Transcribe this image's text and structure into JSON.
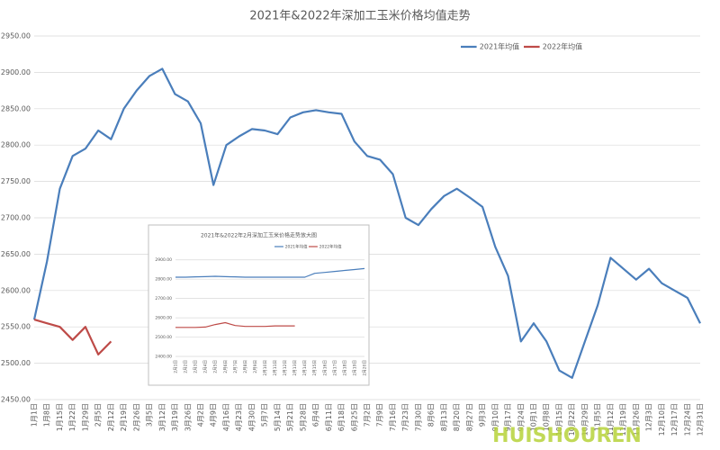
{
  "chart_data": [
    {
      "type": "line",
      "title": "2021年&2022年深加工玉米价格均值走势",
      "categories": [
        "1月1日",
        "1月8日",
        "1月15日",
        "1月22日",
        "1月29日",
        "2月5日",
        "2月12日",
        "2月19日",
        "2月26日",
        "3月5日",
        "3月12日",
        "3月19日",
        "3月26日",
        "4月2日",
        "4月9日",
        "4月16日",
        "4月23日",
        "4月30日",
        "5月7日",
        "5月14日",
        "5月21日",
        "5月28日",
        "6月4日",
        "6月11日",
        "6月18日",
        "6月25日",
        "7月2日",
        "7月9日",
        "7月16日",
        "7月23日",
        "7月30日",
        "8月6日",
        "8月13日",
        "8月20日",
        "8月27日",
        "9月3日",
        "9月10日",
        "9月17日",
        "9月24日",
        "10月1日",
        "10月8日",
        "10月15日",
        "10月22日",
        "10月29日",
        "11月5日",
        "11月12日",
        "11月19日",
        "11月26日",
        "12月3日",
        "12月10日",
        "12月17日",
        "12月24日",
        "12月31日"
      ],
      "series": [
        {
          "name": "2021年均值",
          "color": "#4a7ebb",
          "values": [
            2560,
            2640,
            2740,
            2785,
            2795,
            2820,
            2808,
            2850,
            2875,
            2895,
            2905,
            2870,
            2860,
            2830,
            2745,
            2800,
            2812,
            2822,
            2820,
            2815,
            2838,
            2845,
            2848,
            2845,
            2843,
            2805,
            2785,
            2780,
            2760,
            2700,
            2690,
            2712,
            2730,
            2740,
            2728,
            2715,
            2660,
            2620,
            2530,
            2555,
            2530,
            2490,
            2480,
            2530,
            2580,
            2645,
            2630,
            2615,
            2630,
            2610,
            2600,
            2590,
            2555
          ]
        },
        {
          "name": "2022年均值",
          "color": "#be4b48",
          "values": [
            2560,
            2555,
            2550,
            2532,
            2550,
            2512,
            2530,
            null,
            null,
            null,
            null,
            null,
            null,
            null,
            null,
            null,
            null,
            null,
            null,
            null,
            null,
            null,
            null,
            null,
            null,
            null,
            null,
            null,
            null,
            null,
            null,
            null,
            null,
            null,
            null,
            null,
            null,
            null,
            null,
            null,
            null,
            null,
            null,
            null,
            null,
            null,
            null,
            null,
            null,
            null,
            null,
            null,
            null
          ]
        }
      ],
      "ylim": [
        2450,
        2950
      ],
      "yticks": [
        {
          "value": 2450,
          "label": "2450.00"
        },
        {
          "value": 2500,
          "label": "2500.00"
        },
        {
          "value": 2550,
          "label": "2550.00"
        },
        {
          "value": 2600,
          "label": "2600.00"
        },
        {
          "value": 2650,
          "label": "2650.00"
        },
        {
          "value": 2700,
          "label": "2700.00"
        },
        {
          "value": 2750,
          "label": "2750.00"
        },
        {
          "value": 2800,
          "label": "2800.00"
        },
        {
          "value": 2850,
          "label": "2850.00"
        },
        {
          "value": 2900,
          "label": "2900.00"
        },
        {
          "value": 2950,
          "label": "2950.00"
        }
      ],
      "grid": true,
      "legend": "top-right",
      "watermark": "HUISHOUREN"
    },
    {
      "type": "line",
      "title": "2021年&2022年2月深加工玉米价格走势放大图",
      "categories": [
        "2月1日",
        "2月2日",
        "2月3日",
        "2月4日",
        "2月5日",
        "2月6日",
        "2月7日",
        "2月8日",
        "2月9日",
        "2月10日",
        "2月11日",
        "2月12日",
        "2月13日",
        "2月14日",
        "2月15日",
        "2月16日",
        "2月17日",
        "2月18日",
        "2月19日",
        "2月20日"
      ],
      "series": [
        {
          "name": "2021年均值",
          "color": "#4a7ebb",
          "values": [
            2810,
            2810,
            2812,
            2813,
            2815,
            2813,
            2812,
            2810,
            2810,
            2810,
            2810,
            2810,
            2810,
            2810,
            2830,
            2835,
            2840,
            2845,
            2850,
            2855
          ]
        },
        {
          "name": "2022年均值",
          "color": "#be4b48",
          "values": [
            2550,
            2550,
            2550,
            2552,
            2565,
            2575,
            2560,
            2555,
            2555,
            2555,
            2558,
            2558,
            2558,
            null,
            null,
            null,
            null,
            null,
            null,
            null
          ]
        }
      ],
      "ylim": [
        2400,
        2950
      ],
      "yticks": [
        {
          "value": 2400,
          "label": "2400.00"
        },
        {
          "value": 2500,
          "label": "2500.00"
        },
        {
          "value": 2600,
          "label": "2600.00"
        },
        {
          "value": 2700,
          "label": "2700.00"
        },
        {
          "value": 2800,
          "label": "2800.00"
        },
        {
          "value": 2900,
          "label": "2900.00"
        }
      ],
      "grid": true,
      "legend": "top"
    }
  ]
}
